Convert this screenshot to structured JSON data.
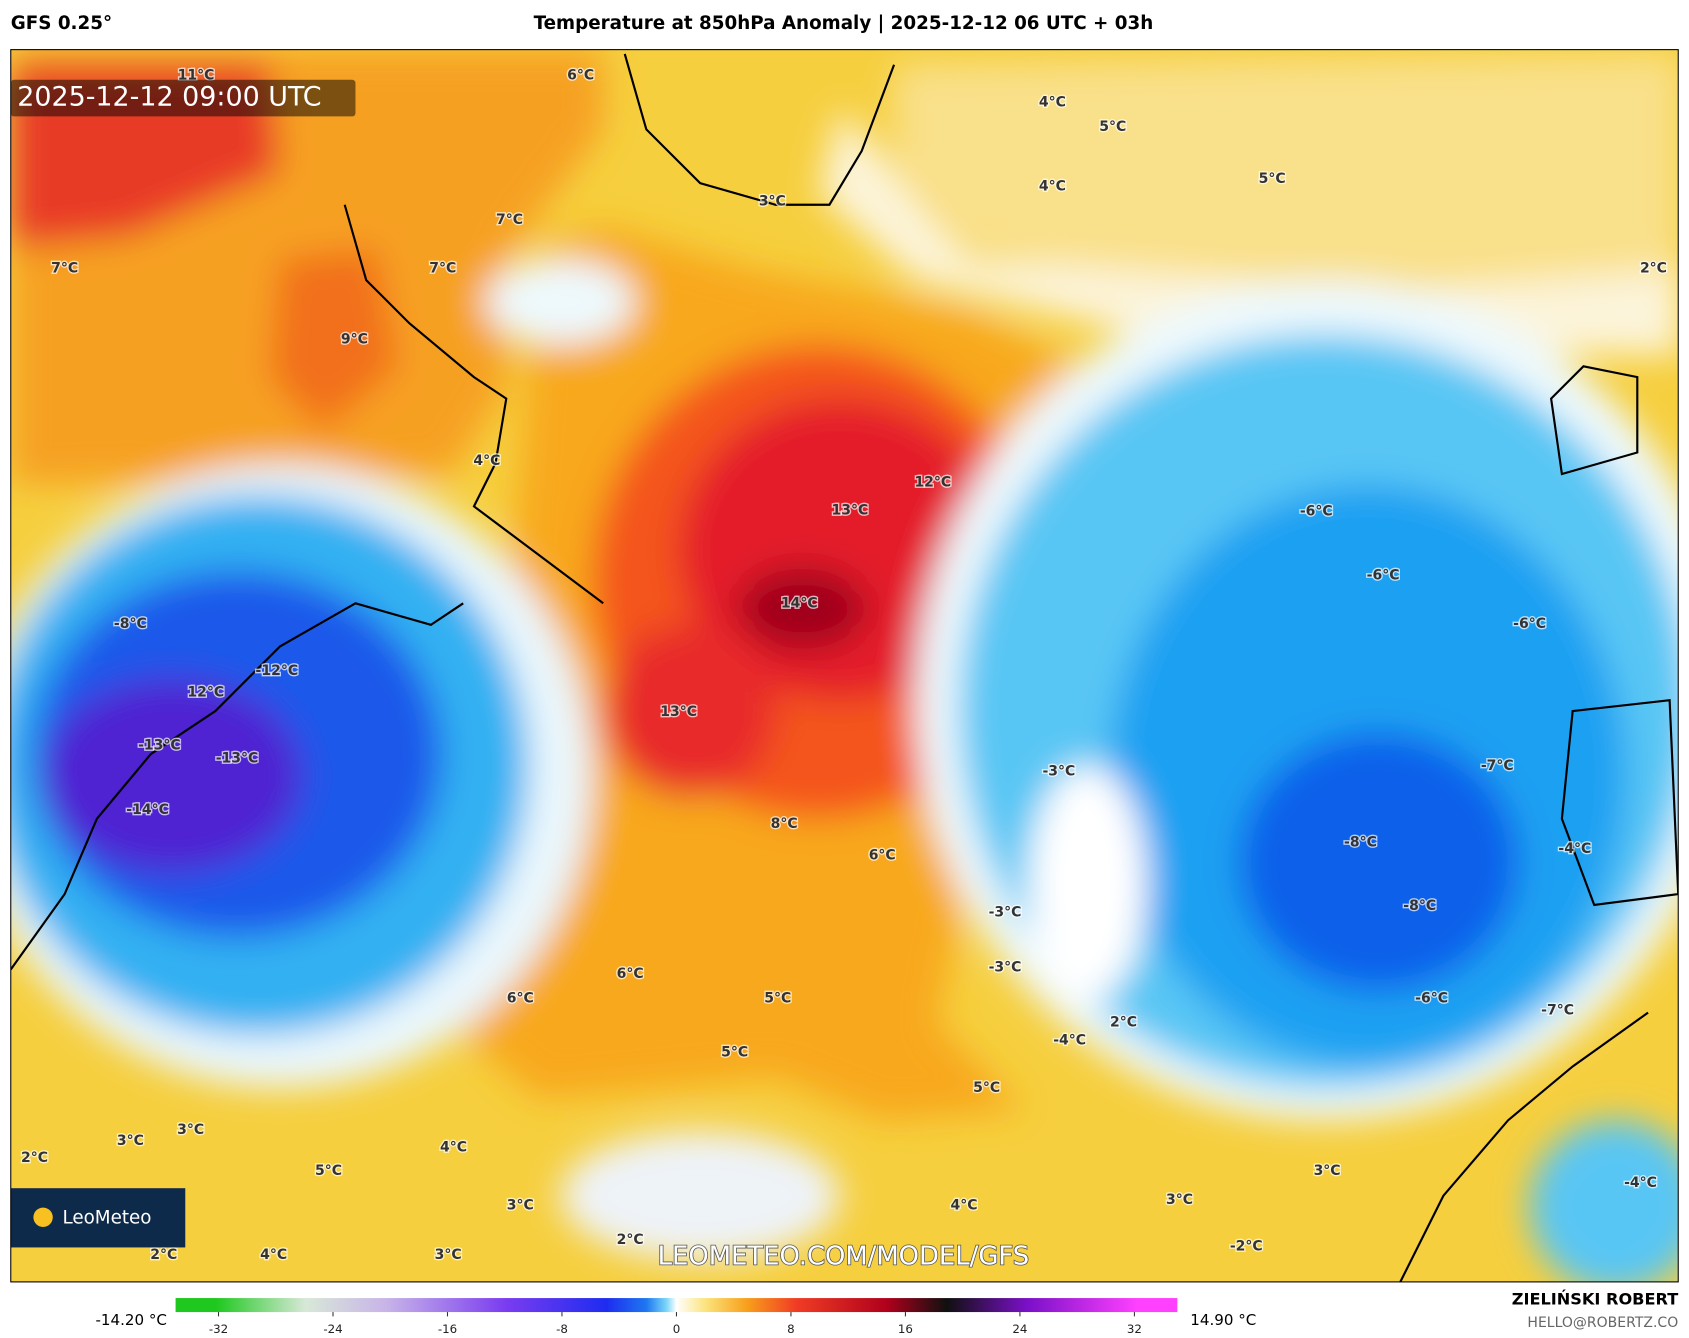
{
  "header": {
    "model": "GFS 0.25°",
    "title": "Temperature at 850hPa Anomaly | 2025-12-12 06 UTC + 03h"
  },
  "map": {
    "valid_time": "2025-12-12 09:00 UTC",
    "watermark": "LEOMETEO.COM/MODEL/GFS",
    "logo": "LeoMeteo",
    "labels": [
      "11°C",
      "6°C",
      "4°C",
      "5°C",
      "5°C",
      "4°C",
      "3°C",
      "7°C",
      "7°C",
      "7°C",
      "2°C",
      "9°C",
      "4°C",
      "12°C",
      "13°C",
      "-6°C",
      "-6°C",
      "14°C",
      "-8°C",
      "-6°C",
      "-12°C",
      "12°C",
      "13°C",
      "-13°C",
      "-13°C",
      "-3°C",
      "-7°C",
      "-14°C",
      "8°C",
      "-8°C",
      "6°C",
      "-4°C",
      "-8°C",
      "-3°C",
      "-3°C",
      "6°C",
      "6°C",
      "5°C",
      "-6°C",
      "-7°C",
      "2°C",
      "-4°C",
      "5°C",
      "5°C",
      "3°C",
      "3°C",
      "2°C",
      "4°C",
      "5°C",
      "3°C",
      "4°C",
      "3°C",
      "3°C",
      "-4°C",
      "2°C",
      "-2°C",
      "2°C",
      "4°C",
      "3°C"
    ]
  },
  "colorbar": {
    "min_label": "-14.20 °C",
    "max_label": "14.90 °C",
    "lim": [
      -35,
      35
    ],
    "ticks": [
      -32,
      -24,
      -16,
      -8,
      0,
      8,
      16,
      24,
      32
    ]
  },
  "footer": {
    "author": "ZIELIŃSKI ROBERT",
    "email": "HELLO@ROBERTZ.CO"
  }
}
